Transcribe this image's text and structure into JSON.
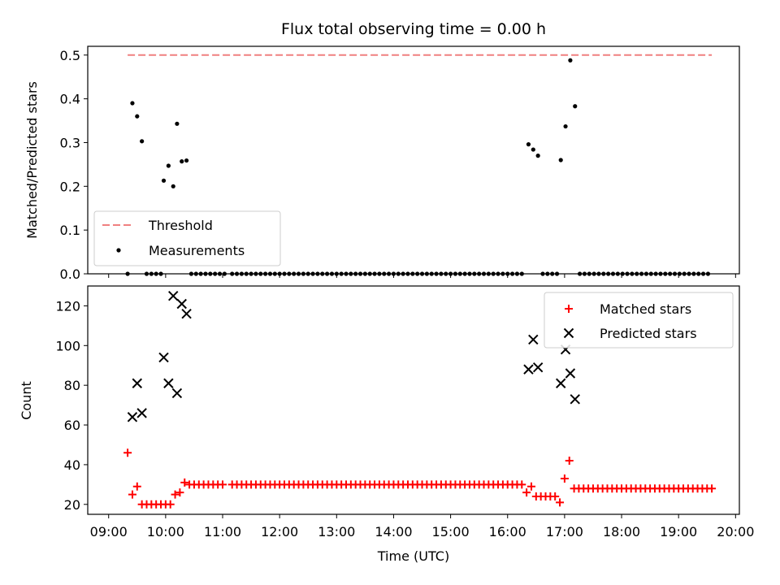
{
  "chart_data": [
    {
      "type": "scatter",
      "title": "Flux total observing time = 0.00 h",
      "xlabel": "",
      "ylabel": "Matched/Predicted stars",
      "xlim": [
        "09:00",
        "20:00"
      ],
      "ylim": [
        0,
        0.52
      ],
      "yticks": [
        "0.0",
        "0.1",
        "0.2",
        "0.3",
        "0.4",
        "0.5"
      ],
      "grid": false,
      "legend": "lower-left",
      "threshold": {
        "name": "Threshold",
        "value": 0.5,
        "x_range": [
          "09:20",
          "19:35"
        ],
        "color": "#f08080",
        "style": "dashed"
      },
      "series": [
        {
          "name": "Measurements",
          "color": "#000000",
          "marker": "dot",
          "points": [
            [
              "09:20",
              0.0
            ],
            [
              "09:25",
              0.39
            ],
            [
              "09:30",
              0.36
            ],
            [
              "09:35",
              0.303
            ],
            [
              "09:40",
              0.0
            ],
            [
              "09:45",
              0.0
            ],
            [
              "09:50",
              0.0
            ],
            [
              "09:55",
              0.0
            ],
            [
              "09:58",
              0.213
            ],
            [
              "10:03",
              0.247
            ],
            [
              "10:08",
              0.2
            ],
            [
              "10:12",
              0.343
            ],
            [
              "10:17",
              0.257
            ],
            [
              "10:22",
              0.259
            ],
            [
              "10:27",
              0.0
            ],
            [
              "10:32",
              0.0
            ],
            [
              "10:37",
              0.0
            ],
            [
              "10:42",
              0.0
            ],
            [
              "10:47",
              0.0
            ],
            [
              "10:52",
              0.0
            ],
            [
              "10:57",
              0.0
            ],
            [
              "11:02",
              0.0
            ],
            [
              "11:10",
              0.0
            ],
            [
              "11:15",
              0.0
            ],
            [
              "11:20",
              0.0
            ],
            [
              "11:25",
              0.0
            ],
            [
              "11:30",
              0.0
            ],
            [
              "11:35",
              0.0
            ],
            [
              "11:40",
              0.0
            ],
            [
              "11:45",
              0.0
            ],
            [
              "11:50",
              0.0
            ],
            [
              "11:55",
              0.0
            ],
            [
              "12:00",
              0.0
            ],
            [
              "12:05",
              0.0
            ],
            [
              "12:10",
              0.0
            ],
            [
              "12:15",
              0.0
            ],
            [
              "12:20",
              0.0
            ],
            [
              "12:25",
              0.0
            ],
            [
              "12:30",
              0.0
            ],
            [
              "12:35",
              0.0
            ],
            [
              "12:40",
              0.0
            ],
            [
              "12:45",
              0.0
            ],
            [
              "12:50",
              0.0
            ],
            [
              "12:55",
              0.0
            ],
            [
              "13:00",
              0.0
            ],
            [
              "13:05",
              0.0
            ],
            [
              "13:10",
              0.0
            ],
            [
              "13:15",
              0.0
            ],
            [
              "13:20",
              0.0
            ],
            [
              "13:25",
              0.0
            ],
            [
              "13:30",
              0.0
            ],
            [
              "13:35",
              0.0
            ],
            [
              "13:40",
              0.0
            ],
            [
              "13:45",
              0.0
            ],
            [
              "13:50",
              0.0
            ],
            [
              "13:55",
              0.0
            ],
            [
              "14:00",
              0.0
            ],
            [
              "14:05",
              0.0
            ],
            [
              "14:10",
              0.0
            ],
            [
              "14:15",
              0.0
            ],
            [
              "14:20",
              0.0
            ],
            [
              "14:25",
              0.0
            ],
            [
              "14:30",
              0.0
            ],
            [
              "14:35",
              0.0
            ],
            [
              "14:40",
              0.0
            ],
            [
              "14:45",
              0.0
            ],
            [
              "14:50",
              0.0
            ],
            [
              "14:55",
              0.0
            ],
            [
              "15:00",
              0.0
            ],
            [
              "15:05",
              0.0
            ],
            [
              "15:10",
              0.0
            ],
            [
              "15:15",
              0.0
            ],
            [
              "15:20",
              0.0
            ],
            [
              "15:25",
              0.0
            ],
            [
              "15:30",
              0.0
            ],
            [
              "15:35",
              0.0
            ],
            [
              "15:40",
              0.0
            ],
            [
              "15:45",
              0.0
            ],
            [
              "15:50",
              0.0
            ],
            [
              "15:55",
              0.0
            ],
            [
              "16:00",
              0.0
            ],
            [
              "16:05",
              0.0
            ],
            [
              "16:10",
              0.0
            ],
            [
              "16:15",
              0.0
            ],
            [
              "16:22",
              0.296
            ],
            [
              "16:27",
              0.284
            ],
            [
              "16:32",
              0.27
            ],
            [
              "16:37",
              0.0
            ],
            [
              "16:42",
              0.0
            ],
            [
              "16:47",
              0.0
            ],
            [
              "16:52",
              0.0
            ],
            [
              "16:56",
              0.26
            ],
            [
              "17:01",
              0.337
            ],
            [
              "17:06",
              0.488
            ],
            [
              "17:11",
              0.383
            ],
            [
              "17:16",
              0.0
            ],
            [
              "17:21",
              0.0
            ],
            [
              "17:26",
              0.0
            ],
            [
              "17:31",
              0.0
            ],
            [
              "17:36",
              0.0
            ],
            [
              "17:41",
              0.0
            ],
            [
              "17:46",
              0.0
            ],
            [
              "17:51",
              0.0
            ],
            [
              "17:56",
              0.0
            ],
            [
              "18:01",
              0.0
            ],
            [
              "18:06",
              0.0
            ],
            [
              "18:11",
              0.0
            ],
            [
              "18:16",
              0.0
            ],
            [
              "18:21",
              0.0
            ],
            [
              "18:26",
              0.0
            ],
            [
              "18:31",
              0.0
            ],
            [
              "18:36",
              0.0
            ],
            [
              "18:41",
              0.0
            ],
            [
              "18:46",
              0.0
            ],
            [
              "18:51",
              0.0
            ],
            [
              "18:56",
              0.0
            ],
            [
              "19:01",
              0.0
            ],
            [
              "19:06",
              0.0
            ],
            [
              "19:11",
              0.0
            ],
            [
              "19:16",
              0.0
            ],
            [
              "19:21",
              0.0
            ],
            [
              "19:26",
              0.0
            ],
            [
              "19:31",
              0.0
            ]
          ]
        }
      ]
    },
    {
      "type": "scatter",
      "title": "",
      "xlabel": "Time (UTC)",
      "ylabel": "Count",
      "xlim": [
        "09:00",
        "20:00"
      ],
      "xticks": [
        "09:00",
        "10:00",
        "11:00",
        "12:00",
        "13:00",
        "14:00",
        "15:00",
        "16:00",
        "17:00",
        "18:00",
        "19:00",
        "20:00"
      ],
      "ylim": [
        15,
        130
      ],
      "yticks": [
        "20",
        "40",
        "60",
        "80",
        "100",
        "120"
      ],
      "grid": false,
      "legend": "top-right",
      "series": [
        {
          "name": "Matched stars",
          "color": "#ff0000",
          "marker": "plus",
          "points": [
            [
              "09:20",
              46
            ],
            [
              "09:25",
              25
            ],
            [
              "09:30",
              29
            ],
            [
              "09:35",
              20
            ],
            [
              "09:40",
              20
            ],
            [
              "09:45",
              20
            ],
            [
              "09:50",
              20
            ],
            [
              "09:55",
              20
            ],
            [
              "10:00",
              20
            ],
            [
              "10:05",
              20
            ],
            [
              "10:10",
              25
            ],
            [
              "10:15",
              26
            ],
            [
              "10:20",
              31
            ],
            [
              "10:25",
              30
            ],
            [
              "10:30",
              30
            ],
            [
              "10:35",
              30
            ],
            [
              "10:40",
              30
            ],
            [
              "10:45",
              30
            ],
            [
              "10:50",
              30
            ],
            [
              "10:55",
              30
            ],
            [
              "11:00",
              30
            ],
            [
              "11:10",
              30
            ],
            [
              "11:15",
              30
            ],
            [
              "11:20",
              30
            ],
            [
              "11:25",
              30
            ],
            [
              "11:30",
              30
            ],
            [
              "11:35",
              30
            ],
            [
              "11:40",
              30
            ],
            [
              "11:45",
              30
            ],
            [
              "11:50",
              30
            ],
            [
              "11:55",
              30
            ],
            [
              "12:00",
              30
            ],
            [
              "12:05",
              30
            ],
            [
              "12:10",
              30
            ],
            [
              "12:15",
              30
            ],
            [
              "12:20",
              30
            ],
            [
              "12:25",
              30
            ],
            [
              "12:30",
              30
            ],
            [
              "12:35",
              30
            ],
            [
              "12:40",
              30
            ],
            [
              "12:45",
              30
            ],
            [
              "12:50",
              30
            ],
            [
              "12:55",
              30
            ],
            [
              "13:00",
              30
            ],
            [
              "13:05",
              30
            ],
            [
              "13:10",
              30
            ],
            [
              "13:15",
              30
            ],
            [
              "13:20",
              30
            ],
            [
              "13:25",
              30
            ],
            [
              "13:30",
              30
            ],
            [
              "13:35",
              30
            ],
            [
              "13:40",
              30
            ],
            [
              "13:45",
              30
            ],
            [
              "13:50",
              30
            ],
            [
              "13:55",
              30
            ],
            [
              "14:00",
              30
            ],
            [
              "14:05",
              30
            ],
            [
              "14:10",
              30
            ],
            [
              "14:15",
              30
            ],
            [
              "14:20",
              30
            ],
            [
              "14:25",
              30
            ],
            [
              "14:30",
              30
            ],
            [
              "14:35",
              30
            ],
            [
              "14:40",
              30
            ],
            [
              "14:45",
              30
            ],
            [
              "14:50",
              30
            ],
            [
              "14:55",
              30
            ],
            [
              "15:00",
              30
            ],
            [
              "15:05",
              30
            ],
            [
              "15:10",
              30
            ],
            [
              "15:15",
              30
            ],
            [
              "15:20",
              30
            ],
            [
              "15:25",
              30
            ],
            [
              "15:30",
              30
            ],
            [
              "15:35",
              30
            ],
            [
              "15:40",
              30
            ],
            [
              "15:45",
              30
            ],
            [
              "15:50",
              30
            ],
            [
              "15:55",
              30
            ],
            [
              "16:00",
              30
            ],
            [
              "16:05",
              30
            ],
            [
              "16:10",
              30
            ],
            [
              "16:15",
              30
            ],
            [
              "16:20",
              26
            ],
            [
              "16:25",
              29
            ],
            [
              "16:30",
              24
            ],
            [
              "16:35",
              24
            ],
            [
              "16:40",
              24
            ],
            [
              "16:45",
              24
            ],
            [
              "16:50",
              24
            ],
            [
              "16:55",
              21
            ],
            [
              "17:00",
              33
            ],
            [
              "17:05",
              42
            ],
            [
              "17:10",
              28
            ],
            [
              "17:15",
              28
            ],
            [
              "17:20",
              28
            ],
            [
              "17:25",
              28
            ],
            [
              "17:30",
              28
            ],
            [
              "17:35",
              28
            ],
            [
              "17:40",
              28
            ],
            [
              "17:45",
              28
            ],
            [
              "17:50",
              28
            ],
            [
              "17:55",
              28
            ],
            [
              "18:00",
              28
            ],
            [
              "18:05",
              28
            ],
            [
              "18:10",
              28
            ],
            [
              "18:15",
              28
            ],
            [
              "18:20",
              28
            ],
            [
              "18:25",
              28
            ],
            [
              "18:30",
              28
            ],
            [
              "18:35",
              28
            ],
            [
              "18:40",
              28
            ],
            [
              "18:45",
              28
            ],
            [
              "18:50",
              28
            ],
            [
              "18:55",
              28
            ],
            [
              "19:00",
              28
            ],
            [
              "19:05",
              28
            ],
            [
              "19:10",
              28
            ],
            [
              "19:15",
              28
            ],
            [
              "19:20",
              28
            ],
            [
              "19:25",
              28
            ],
            [
              "19:30",
              28
            ],
            [
              "19:35",
              28
            ]
          ]
        },
        {
          "name": "Predicted stars",
          "color": "#000000",
          "marker": "x",
          "points": [
            [
              "09:25",
              64
            ],
            [
              "09:30",
              81
            ],
            [
              "09:35",
              66
            ],
            [
              "09:58",
              94
            ],
            [
              "10:03",
              81
            ],
            [
              "10:08",
              125
            ],
            [
              "10:12",
              76
            ],
            [
              "10:17",
              121
            ],
            [
              "10:22",
              116
            ],
            [
              "16:22",
              88
            ],
            [
              "16:27",
              103
            ],
            [
              "16:32",
              89
            ],
            [
              "16:56",
              81
            ],
            [
              "17:01",
              98
            ],
            [
              "17:06",
              86
            ],
            [
              "17:11",
              73
            ]
          ]
        }
      ]
    }
  ]
}
